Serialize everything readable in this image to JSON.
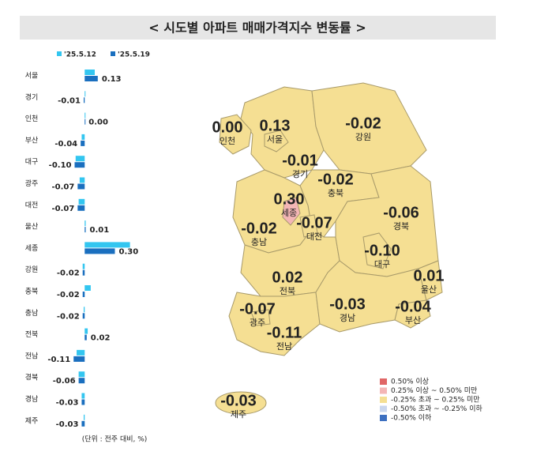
{
  "chart_data": {
    "type": "hbar",
    "title": "< 시도별 아파트 매매가격지수 변동률 >",
    "note": "(단위 : 전주 대비, %)",
    "categories": [
      "서울",
      "경기",
      "인천",
      "부산",
      "대구",
      "광주",
      "대전",
      "울산",
      "세종",
      "강원",
      "충북",
      "충남",
      "전북",
      "전남",
      "경북",
      "경남",
      "제주"
    ],
    "series": [
      {
        "name": "'25.5.12",
        "color": "#33c6f0",
        "values": [
          0.1,
          0.0,
          0.0,
          -0.03,
          -0.09,
          -0.05,
          -0.06,
          0.01,
          0.45,
          -0.02,
          0.06,
          -0.01,
          0.03,
          -0.08,
          -0.06,
          -0.03,
          -0.01
        ]
      },
      {
        "name": "'25.5.19",
        "color": "#1a6fbf",
        "values": [
          0.13,
          -0.01,
          0,
          -0.04,
          -0.1,
          -0.07,
          -0.07,
          0.01,
          0.3,
          -0.02,
          -0.02,
          -0.02,
          0.02,
          -0.11,
          -0.06,
          -0.03,
          -0.03
        ],
        "value_labels": [
          "0.13",
          "-0.01",
          "0.00",
          "-0.04",
          "-0.10",
          "-0.07",
          "-0.07",
          "0.01",
          "0.30",
          "-0.02",
          "-0.02",
          "-0.02",
          "0.02",
          "-0.11",
          "-0.06",
          "-0.03",
          "-0.03"
        ]
      }
    ],
    "xlim": [
      -0.3,
      0.5
    ],
    "map_colors": [
      "#f5df93",
      "#f5df93",
      "#f5df93",
      "#f5df93",
      "#f5df93",
      "#f5df93",
      "#f5df93",
      "#f5df93",
      "#f4b6b6",
      "#f5df93",
      "#f5df93",
      "#f5df93",
      "#f5df93",
      "#f5df93",
      "#f5df93",
      "#f5df93",
      "#f5df93"
    ],
    "map_legend": [
      {
        "label": "0.50% 이상",
        "color": "#e06666"
      },
      {
        "label": "0.25% 이상 ~ 0.50% 미만",
        "color": "#f4b6b6"
      },
      {
        "label": "-0.25% 초과 ~ 0.25% 미만",
        "color": "#f5df93"
      },
      {
        "label": "-0.50% 초과 ~ -0.25% 이하",
        "color": "#c9d6ee"
      },
      {
        "label": "-0.50% 이하",
        "color": "#3c6fc0"
      }
    ]
  }
}
